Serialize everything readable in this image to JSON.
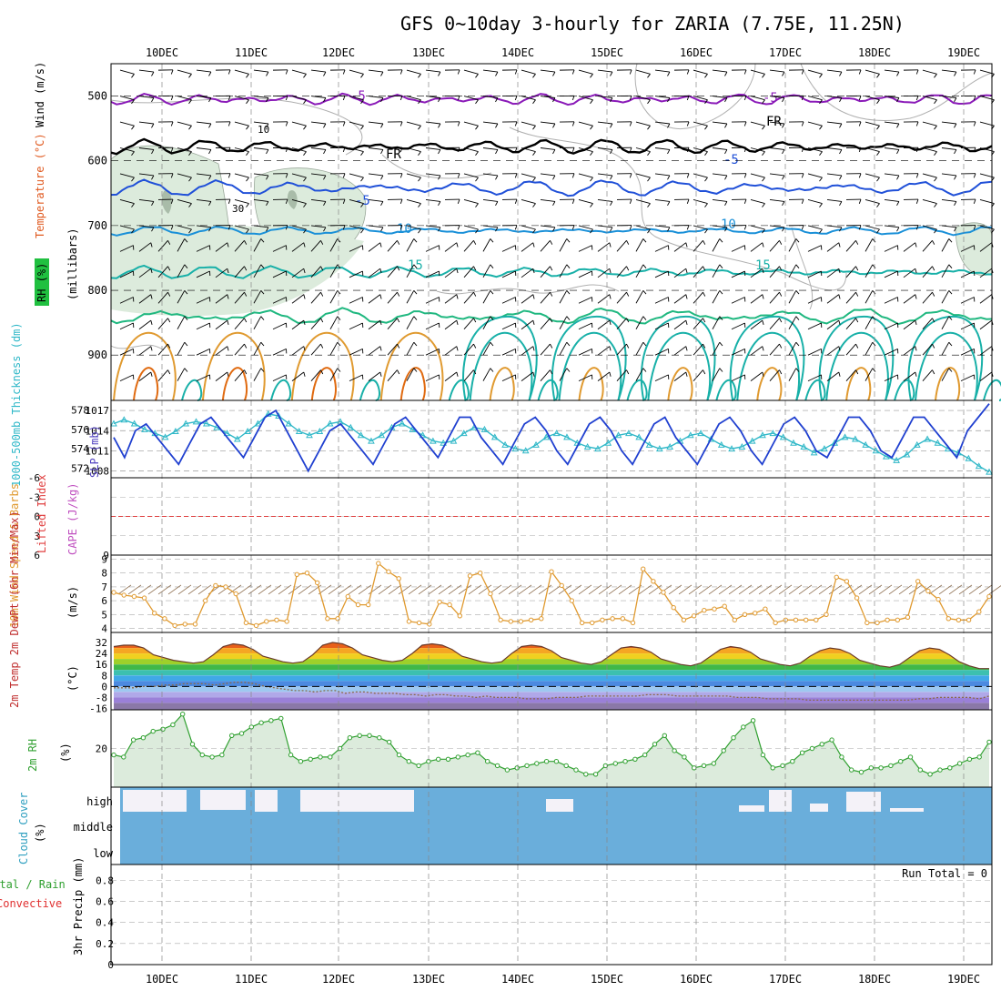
{
  "title": "GFS 0~10day 3-hourly for ZARIA (7.75E, 11.25N)",
  "colors": {
    "purple": "#8a1ab8",
    "blue": "#2050d8",
    "cyan": "#1a90d8",
    "teal": "#18b0a8",
    "green": "#20b880",
    "orange": "#e09a30",
    "darkorange": "#e06a10",
    "cloud_blue": "#6aaedb",
    "rh_fill": "#dcebdc",
    "rh_fill_dark": "#bfd6bf",
    "slp_line": "#2040d0",
    "thick_line": "#30b8c8",
    "lifted_line": "#e04040",
    "wind_line": "#e09a30",
    "rh2m_line": "#30a030"
  },
  "chart_data": [
    {
      "type": "contour",
      "panel": "upper-air",
      "x_ticks": [
        "10DEC",
        "11DEC",
        "12DEC",
        "13DEC",
        "14DEC",
        "15DEC",
        "16DEC",
        "17DEC",
        "18DEC",
        "19DEC"
      ],
      "y_ticks": [
        500,
        600,
        700,
        800,
        900
      ],
      "y_label_wind": "Wind (m/s)",
      "y_label_temp": "Temperature (°C)",
      "y_label_mb": "(millibars)",
      "y_label_rh": "RH (%)",
      "contour_labels": [
        "-5",
        "-5",
        "FR",
        "FR",
        "-5",
        "-5",
        "10",
        "10",
        "15",
        "15",
        "30"
      ],
      "isotherms": [
        {
          "temp": -5,
          "level": 505
        },
        {
          "temp": 0,
          "level": 575
        },
        {
          "temp": -5,
          "level": 640
        },
        {
          "temp": 10,
          "level": 707
        },
        {
          "temp": 15,
          "level": 770
        }
      ]
    },
    {
      "type": "line",
      "panel": "slp-thickness",
      "y_label_left": "1000-500mb Thickness (dm)",
      "y_label_right": "SLP (mb)",
      "left_ticks": [
        572,
        574,
        576,
        578
      ],
      "right_ticks": [
        1008,
        1011,
        1014,
        1017
      ],
      "series": [
        {
          "name": "SLP",
          "values": [
            1013,
            1010,
            1014,
            1015,
            1013,
            1011,
            1009,
            1012,
            1015,
            1016,
            1014,
            1012,
            1010,
            1013,
            1016,
            1017,
            1014,
            1011,
            1008,
            1011,
            1014,
            1015,
            1013,
            1011,
            1009,
            1012,
            1015,
            1016,
            1014,
            1012,
            1010,
            1013,
            1016,
            1016,
            1013,
            1011,
            1009,
            1012,
            1015,
            1016,
            1014,
            1011,
            1009,
            1012,
            1015,
            1016,
            1014,
            1011,
            1009,
            1012,
            1015,
            1016,
            1013,
            1011,
            1009,
            1012,
            1015,
            1016,
            1014,
            1011,
            1009,
            1012,
            1015,
            1016,
            1014,
            1011,
            1010,
            1013,
            1016,
            1016,
            1014,
            1011,
            1010,
            1013,
            1016,
            1016,
            1014,
            1012,
            1010,
            1014,
            1016,
            1018
          ]
        },
        {
          "name": "Thickness",
          "values": [
            576.6,
            577.0,
            576.6,
            576.0,
            575.6,
            575.2,
            575.8,
            576.6,
            576.8,
            576.6,
            576.2,
            575.6,
            575.0,
            575.8,
            576.6,
            577.6,
            577.4,
            576.6,
            575.8,
            575.4,
            575.8,
            576.6,
            576.8,
            576.2,
            575.4,
            574.8,
            575.4,
            576.2,
            576.6,
            576.0,
            575.4,
            574.8,
            574.6,
            574.8,
            575.6,
            576.2,
            576.0,
            575.2,
            574.4,
            574.0,
            573.8,
            574.4,
            575.2,
            575.6,
            575.2,
            574.6,
            574.2,
            574.0,
            574.6,
            575.4,
            575.6,
            575.2,
            574.4,
            574.0,
            574.2,
            574.8,
            575.4,
            575.6,
            575.0,
            574.4,
            574.0,
            574.2,
            574.8,
            575.4,
            575.6,
            575.2,
            574.6,
            574.2,
            573.6,
            574.0,
            574.6,
            575.2,
            575.0,
            574.4,
            573.8,
            573.2,
            572.8,
            573.4,
            574.4,
            575.0,
            574.6,
            574.0,
            573.6,
            573.0,
            572.2,
            571.6
          ]
        }
      ]
    },
    {
      "type": "line",
      "panel": "lifted-index-cape",
      "y_label_left": "Lifted Index",
      "y_label_right": "CAPE (J/kg)",
      "left_ticks": [
        "-6",
        "-3",
        "0",
        "3",
        "6"
      ],
      "right_tick": "9",
      "lifted_index_value": 0
    },
    {
      "type": "line",
      "panel": "wind-10m",
      "y_label": "10m Wind Speed & Barbs",
      "y_unit": "(m/s)",
      "y_ticks": [
        4,
        5,
        6,
        7,
        8,
        9
      ],
      "series": [
        {
          "name": "10m wind speed",
          "values": [
            6.6,
            6.4,
            6.3,
            6.2,
            5.1,
            4.7,
            4.2,
            4.3,
            4.3,
            6.0,
            7.1,
            7.0,
            6.5,
            4.4,
            4.2,
            4.5,
            4.6,
            4.5,
            7.9,
            8.0,
            7.3,
            4.7,
            4.7,
            6.3,
            5.7,
            5.7,
            8.7,
            8.1,
            7.6,
            4.5,
            4.4,
            4.3,
            5.9,
            5.7,
            4.9,
            7.8,
            8.0,
            6.5,
            4.6,
            4.5,
            4.5,
            4.6,
            4.7,
            8.1,
            7.1,
            6.0,
            4.4,
            4.4,
            4.6,
            4.7,
            4.7,
            4.4,
            8.3,
            7.4,
            6.6,
            5.5,
            4.6,
            4.9,
            5.3,
            5.4,
            5.6,
            4.6,
            5.0,
            5.1,
            5.4,
            4.4,
            4.6,
            4.6,
            4.6,
            4.6,
            5.0,
            7.7,
            7.4,
            6.2,
            4.4,
            4.4,
            4.6,
            4.6,
            4.8,
            7.4,
            6.7,
            6.1,
            4.7,
            4.6,
            4.6,
            5.2,
            6.3
          ]
        }
      ]
    },
    {
      "type": "area",
      "panel": "temp-dewpt",
      "y_label": "2m Temp 2m DewPt (6hr Min/Max)",
      "y_unit": "(°C)",
      "y_ticks": [
        "32",
        "24",
        "16",
        "8",
        "0",
        "-8",
        "-16"
      ],
      "series": [
        {
          "name": "2m Temp",
          "values": [
            29,
            30,
            30,
            28,
            23,
            21,
            19,
            18,
            17,
            18,
            23,
            29,
            31,
            30,
            27,
            22,
            20,
            18,
            17,
            18,
            23,
            30,
            32,
            31,
            28,
            23,
            21,
            19,
            18,
            19,
            24,
            30,
            31,
            30,
            27,
            22,
            20,
            18,
            17,
            18,
            24,
            29,
            30,
            29,
            26,
            21,
            19,
            17,
            16,
            18,
            23,
            28,
            29,
            28,
            25,
            20,
            18,
            16,
            15,
            17,
            22,
            27,
            29,
            28,
            25,
            20,
            18,
            16,
            15,
            17,
            22,
            26,
            28,
            27,
            24,
            19,
            17,
            15,
            14,
            16,
            21,
            26,
            28,
            27,
            23,
            18,
            15,
            13,
            13
          ]
        },
        {
          "name": "2m DewPt",
          "values": [
            -1,
            -1,
            -1,
            0,
            0,
            1,
            1,
            2,
            2,
            2,
            1,
            2,
            3,
            3,
            2,
            0,
            -1,
            -2,
            -3,
            -3,
            -4,
            -3,
            -3,
            -5,
            -4,
            -4,
            -5,
            -5,
            -5,
            -6,
            -6,
            -7,
            -6,
            -6,
            -7,
            -7,
            -8,
            -7,
            -8,
            -8,
            -8,
            -9,
            -9,
            -9,
            -8,
            -8,
            -8,
            -7,
            -7,
            -7,
            -7,
            -7,
            -7,
            -6,
            -6,
            -6,
            -7,
            -7,
            -7,
            -7,
            -7,
            -7,
            -8,
            -8,
            -8,
            -9,
            -9,
            -9,
            -9,
            -10,
            -10,
            -10,
            -10,
            -10,
            -10,
            -10,
            -10,
            -10,
            -10,
            -10,
            -9,
            -9,
            -8,
            -8,
            -8,
            -8,
            -9,
            -7
          ]
        }
      ]
    },
    {
      "type": "area",
      "panel": "rh-2m",
      "y_label": "2m RH",
      "y_unit": "(%)",
      "y_ticks": [
        20
      ],
      "series": [
        {
          "name": "2m RH",
          "values": [
            17,
            16,
            24,
            25,
            28,
            29,
            31,
            36,
            22,
            17,
            16,
            17,
            26,
            27,
            30,
            32,
            33,
            34,
            17,
            14,
            15,
            16,
            16,
            20,
            25,
            26,
            26,
            25,
            23,
            17,
            14,
            12,
            14,
            15,
            15,
            16,
            17,
            18,
            14,
            12,
            10,
            11,
            12,
            13,
            14,
            14,
            12,
            10,
            8,
            8,
            12,
            13,
            14,
            15,
            17,
            22,
            26,
            19,
            16,
            11,
            12,
            13,
            19,
            25,
            30,
            33,
            17,
            11,
            12,
            14,
            18,
            20,
            22,
            24,
            16,
            10,
            9,
            11,
            11,
            12,
            14,
            16,
            10,
            8,
            10,
            11,
            13,
            15,
            16,
            23
          ]
        }
      ]
    },
    {
      "type": "heatmap",
      "panel": "cloud-cover",
      "y_label": "Cloud Cover",
      "y_unit": "(%)",
      "levels": [
        "high",
        "middle",
        "low"
      ]
    },
    {
      "type": "bar",
      "panel": "precip",
      "y_label": "3hr Precip (mm)",
      "legend_left_1": "Total / Rain",
      "legend_left_2": "Convective",
      "run_total": "Run Total = 0",
      "y_ticks": [
        "0",
        "0.2",
        "0.4",
        "0.6",
        "0.8"
      ],
      "values": []
    }
  ],
  "bottom_ticks": [
    "10DEC",
    "11DEC",
    "12DEC",
    "13DEC",
    "14DEC",
    "15DEC",
    "16DEC",
    "17DEC",
    "18DEC",
    "19DEC"
  ]
}
